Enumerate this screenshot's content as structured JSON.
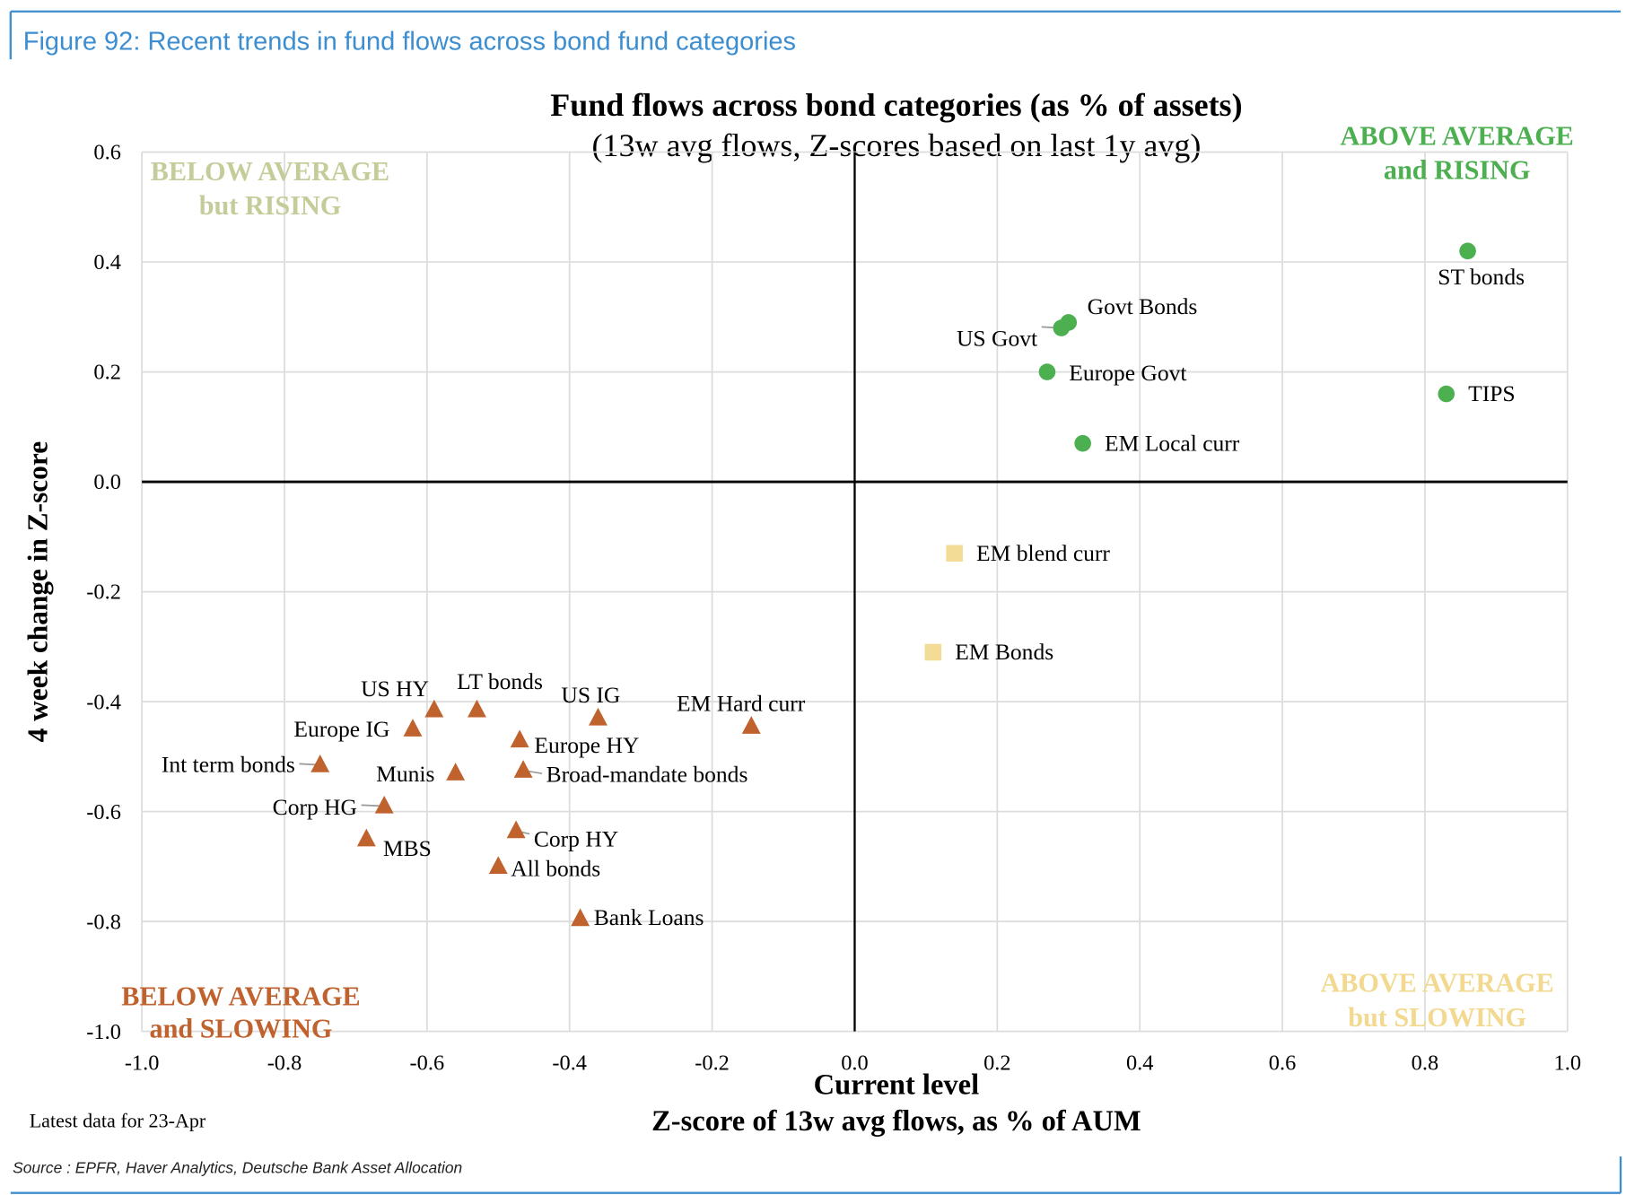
{
  "figure_title": "Figure 92: Recent trends in fund flows across bond fund categories",
  "footnote": "Latest data for 23-Apr",
  "source": "Source : EPFR, Haver Analytics, Deutsche Bank Asset Allocation",
  "colors": {
    "accent": "#3d8ed0",
    "rising": "#4caf50",
    "slowing": "#c0622e",
    "blend": "#f3dc96",
    "below_rising": "#c5cc9a",
    "above_slowing": "#f2d98f"
  },
  "chart_data": {
    "type": "scatter",
    "title": "Fund flows across bond categories (as % of assets)",
    "subtitle": "(13w avg flows, Z-scores based on last 1y avg)",
    "xlabel": "Current level",
    "xlabel2": "Z-score of 13w avg flows, as % of AUM",
    "ylabel": "4 week change in Z-score",
    "xlim": [
      -1.0,
      1.0
    ],
    "ylim": [
      -1.0,
      0.6
    ],
    "grid": true,
    "xticks": [
      "-1.0",
      "-0.8",
      "-0.6",
      "-0.4",
      "-0.2",
      "0.0",
      "0.2",
      "0.4",
      "0.6",
      "0.8",
      "1.0"
    ],
    "yticks": [
      "0.6",
      "0.4",
      "0.2",
      "0.0",
      "-0.2",
      "-0.4",
      "-0.6",
      "-0.8",
      "-1.0"
    ],
    "quadrants": {
      "top_left": [
        "BELOW AVERAGE",
        "but RISING"
      ],
      "top_right": [
        "ABOVE AVERAGE",
        "and RISING"
      ],
      "bottom_left": [
        "BELOW AVERAGE",
        "and SLOWING"
      ],
      "bottom_right": [
        "ABOVE AVERAGE",
        "but SLOWING"
      ]
    },
    "points": [
      {
        "label": "ST bonds",
        "x": 0.86,
        "y": 0.42,
        "group": "rising"
      },
      {
        "label": "Govt Bonds",
        "x": 0.3,
        "y": 0.29,
        "group": "rising"
      },
      {
        "label": "US Govt",
        "x": 0.29,
        "y": 0.28,
        "group": "rising"
      },
      {
        "label": "Europe Govt",
        "x": 0.27,
        "y": 0.2,
        "group": "rising"
      },
      {
        "label": "TIPS",
        "x": 0.83,
        "y": 0.16,
        "group": "rising"
      },
      {
        "label": "EM Local curr",
        "x": 0.32,
        "y": 0.07,
        "group": "rising"
      },
      {
        "label": "EM blend curr",
        "x": 0.14,
        "y": -0.13,
        "group": "slowing_above"
      },
      {
        "label": "EM Bonds",
        "x": 0.11,
        "y": -0.31,
        "group": "slowing_above"
      },
      {
        "label": "US HY",
        "x": -0.59,
        "y": -0.415,
        "group": "slowing_below"
      },
      {
        "label": "LT bonds",
        "x": -0.53,
        "y": -0.415,
        "group": "slowing_below"
      },
      {
        "label": "US IG",
        "x": -0.36,
        "y": -0.43,
        "group": "slowing_below"
      },
      {
        "label": "EM Hard curr",
        "x": -0.145,
        "y": -0.445,
        "group": "slowing_below"
      },
      {
        "label": "Europe IG",
        "x": -0.62,
        "y": -0.45,
        "group": "slowing_below"
      },
      {
        "label": "Europe HY",
        "x": -0.47,
        "y": -0.47,
        "group": "slowing_below"
      },
      {
        "label": "Int term bonds",
        "x": -0.75,
        "y": -0.515,
        "group": "slowing_below"
      },
      {
        "label": "Munis",
        "x": -0.56,
        "y": -0.53,
        "group": "slowing_below"
      },
      {
        "label": "Broad-mandate bonds",
        "x": -0.465,
        "y": -0.525,
        "group": "slowing_below"
      },
      {
        "label": "Corp HG",
        "x": -0.66,
        "y": -0.59,
        "group": "slowing_below"
      },
      {
        "label": "MBS",
        "x": -0.685,
        "y": -0.65,
        "group": "slowing_below"
      },
      {
        "label": "Corp HY",
        "x": -0.475,
        "y": -0.635,
        "group": "slowing_below"
      },
      {
        "label": "All bonds",
        "x": -0.5,
        "y": -0.7,
        "group": "slowing_below"
      },
      {
        "label": "Bank Loans",
        "x": -0.385,
        "y": -0.795,
        "group": "slowing_below"
      }
    ]
  }
}
